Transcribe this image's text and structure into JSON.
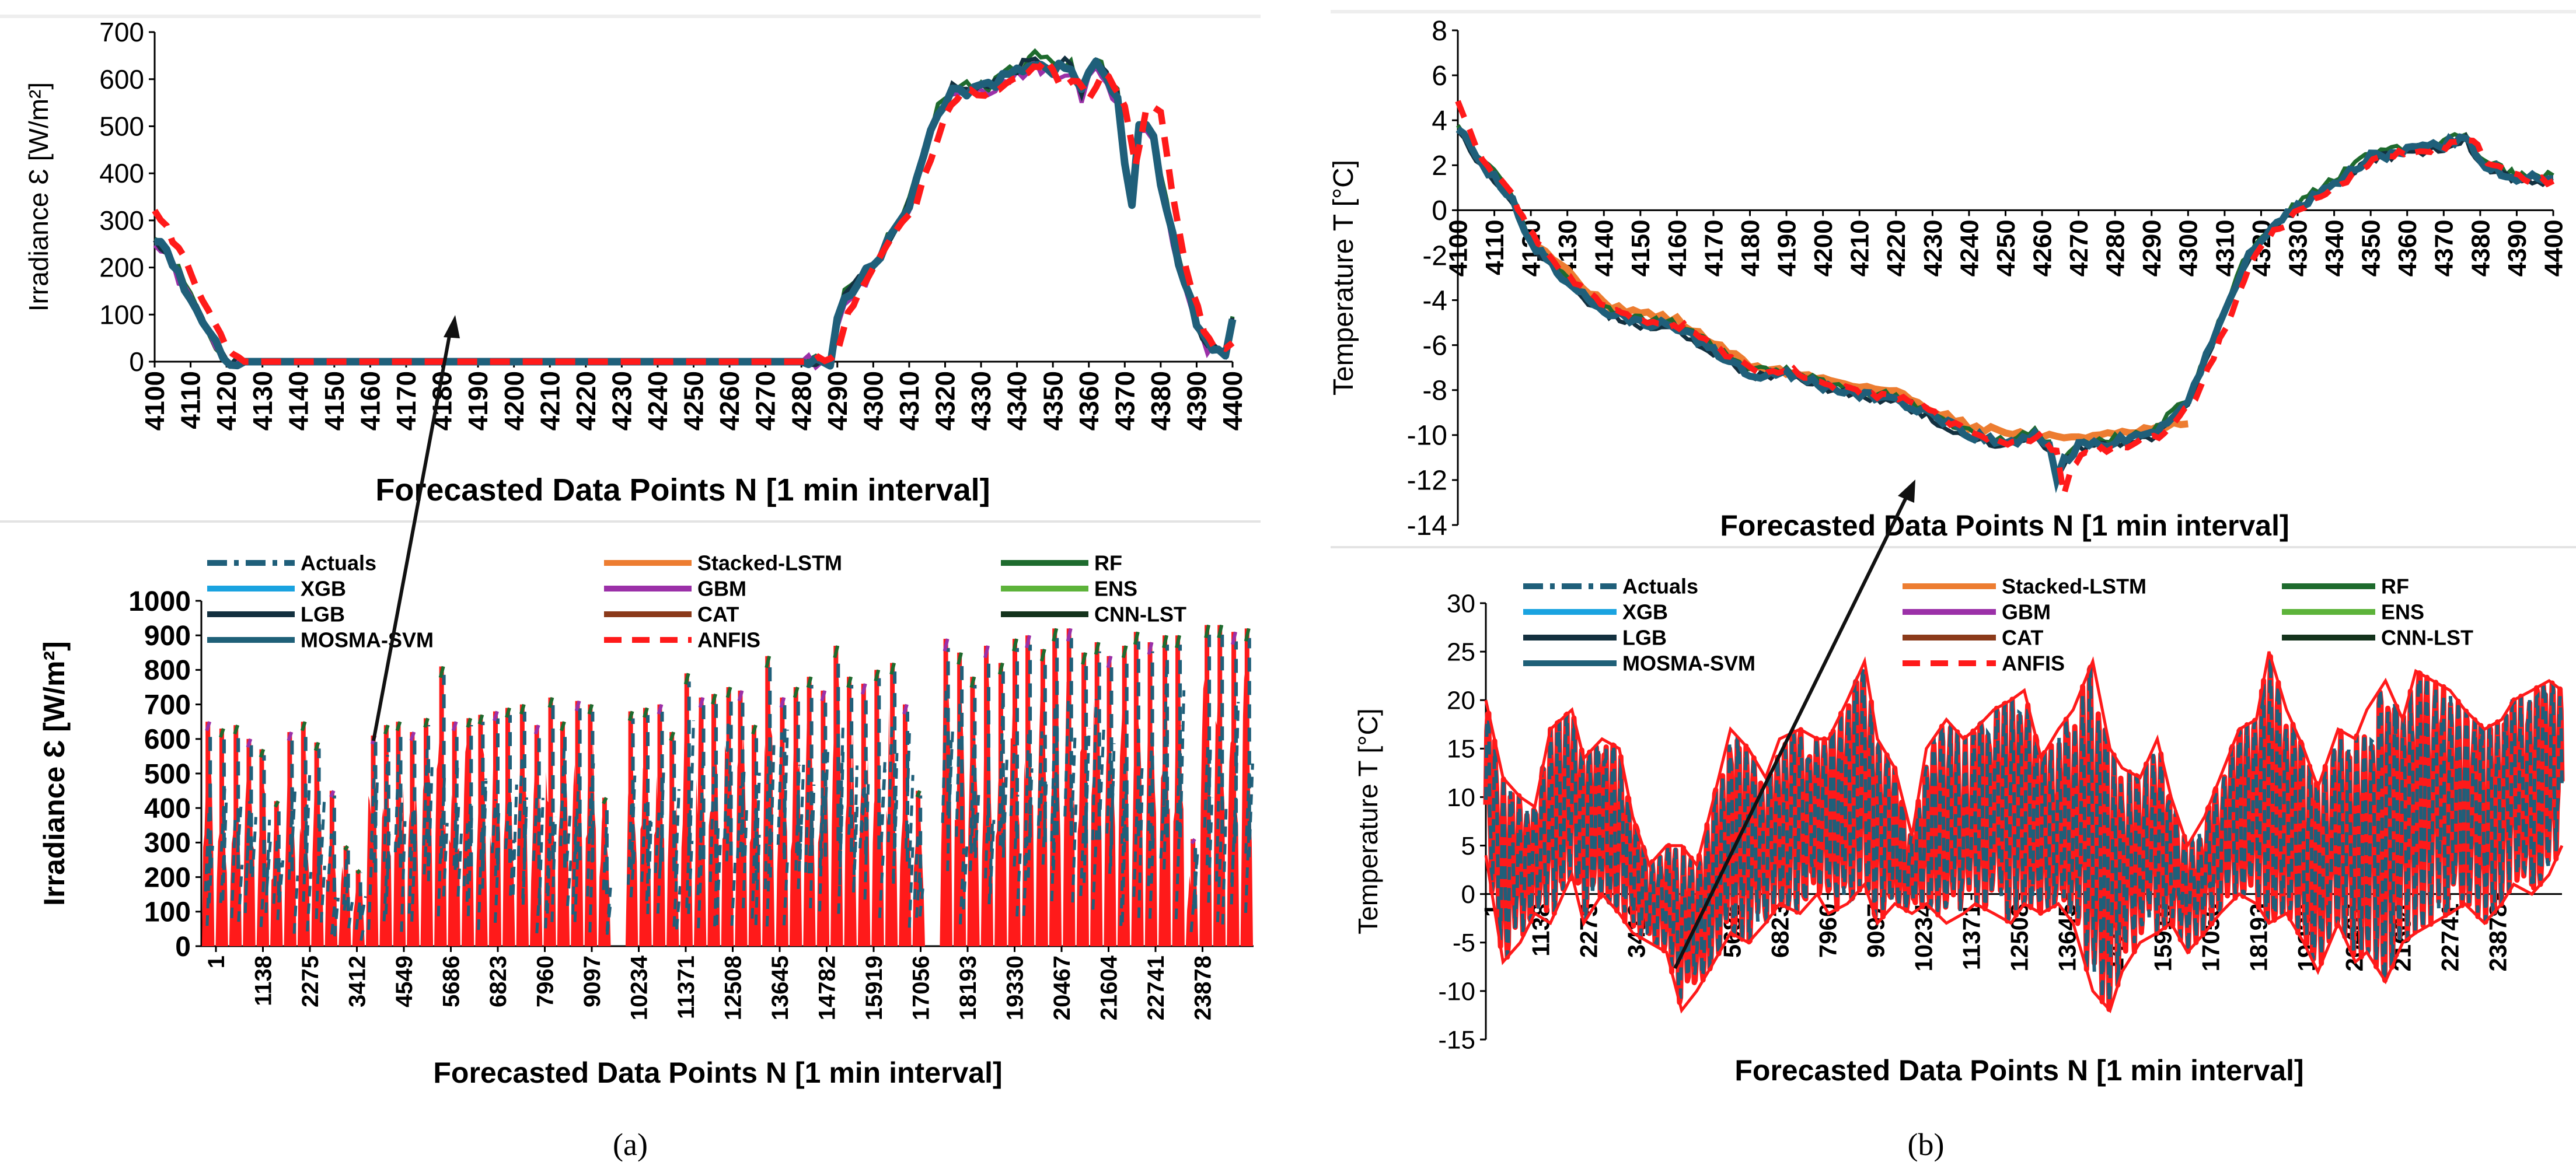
{
  "panel_labels": [
    "(a)",
    "(b)"
  ],
  "legend_entries": [
    {
      "name": "Actuals",
      "color": "#1f5f7a",
      "dash": "dashdot"
    },
    {
      "name": "Stacked-LSTM",
      "color": "#ed7d31",
      "dash": "solid"
    },
    {
      "name": "RF",
      "color": "#1e6b2e",
      "dash": "solid"
    },
    {
      "name": "XGB",
      "color": "#1aa3e0",
      "dash": "solid"
    },
    {
      "name": "GBM",
      "color": "#9b30a8",
      "dash": "solid"
    },
    {
      "name": "ENS",
      "color": "#5db33a",
      "dash": "solid"
    },
    {
      "name": "LGB",
      "color": "#13303f",
      "dash": "solid"
    },
    {
      "name": "CAT",
      "color": "#8b3a1a",
      "dash": "solid"
    },
    {
      "name": "CNN-LST",
      "color": "#14331c",
      "dash": "solid"
    },
    {
      "name": "MOSMA-SVM",
      "color": "#1f6078",
      "dash": "solid"
    },
    {
      "name": "ANFIS",
      "color": "#ff1a1a",
      "dash": "dash"
    }
  ],
  "colors": {
    "actual": "#1f5f7a",
    "anfis": "#ff1a1a",
    "gbm": "#9b30a8",
    "rf": "#1e6b2e",
    "stacked": "#ed7d31",
    "grid": "#d9d9d9",
    "axis": "#000000"
  },
  "chart_data": [
    {
      "id": "a-top",
      "type": "line",
      "title": "",
      "xlabel": "Forecasted Data Points N [1 min interval]",
      "ylabel": "Irradiance Ɛ [W/m²]",
      "xlim": [
        4100,
        4400
      ],
      "ylim": [
        0,
        700
      ],
      "xticks": [
        "4100",
        "4110",
        "4120",
        "4130",
        "4140",
        "4150",
        "4160",
        "4170",
        "4180",
        "4190",
        "4200",
        "4210",
        "4220",
        "4230",
        "4240",
        "4250",
        "4260",
        "4270",
        "4280",
        "4290",
        "4300",
        "4310",
        "4320",
        "4330",
        "4340",
        "4350",
        "4360",
        "4370",
        "4380",
        "4390",
        "4400"
      ],
      "yticks": [
        "0",
        "100",
        "200",
        "300",
        "400",
        "500",
        "600",
        "700"
      ],
      "series_actual": {
        "name": "Actuals",
        "x": [
          4100,
          4105,
          4110,
          4115,
          4119,
          4125,
          4200,
          4280,
          4288,
          4290,
          4292,
          4300,
          4310,
          4318,
          4322,
          4330,
          4340,
          4345,
          4350,
          4355,
          4358,
          4362,
          4365,
          4368,
          4370,
          4372,
          4374,
          4378,
          4380,
          4385,
          4390,
          4393,
          4396,
          4398,
          4400
        ],
        "values": [
          270,
          210,
          140,
          60,
          5,
          0,
          0,
          0,
          5,
          80,
          140,
          200,
          340,
          530,
          575,
          575,
          615,
          640,
          620,
          630,
          570,
          640,
          600,
          560,
          420,
          330,
          500,
          480,
          380,
          210,
          80,
          40,
          20,
          20,
          90
        ]
      },
      "series_anfis": {
        "name": "ANFIS",
        "x": [
          4100,
          4105,
          4110,
          4115,
          4120,
          4125,
          4200,
          4283,
          4290,
          4293,
          4296,
          4302,
          4312,
          4320,
          4325,
          4333,
          4343,
          4348,
          4352,
          4357,
          4360,
          4364,
          4367,
          4370,
          4373,
          4376,
          4380,
          4383,
          4387,
          4392,
          4395,
          4398,
          4400
        ],
        "values": [
          330,
          260,
          190,
          110,
          30,
          0,
          0,
          0,
          20,
          100,
          150,
          220,
          340,
          520,
          570,
          570,
          610,
          635,
          590,
          600,
          560,
          620,
          590,
          540,
          410,
          540,
          530,
          370,
          200,
          70,
          30,
          20,
          40
        ]
      }
    },
    {
      "id": "a-bottom",
      "type": "line",
      "title": "",
      "xlabel": "Forecasted Data Points N [1 min interval]",
      "ylabel": "Irradiance Ɛ [W/m²]",
      "xlim": [
        1,
        25000
      ],
      "ylim": [
        0,
        1000
      ],
      "xticks": [
        "1",
        "1138",
        "2275",
        "3412",
        "4549",
        "5686",
        "6823",
        "7960",
        "9097",
        "10234",
        "11371",
        "12508",
        "13645",
        "14782",
        "15919",
        "17056",
        "18193",
        "19330",
        "20467",
        "21604",
        "22741",
        "23878"
      ],
      "yticks": [
        "0",
        "100",
        "200",
        "300",
        "400",
        "500",
        "600",
        "700",
        "800",
        "900",
        "1000"
      ],
      "day_peaks": [
        650,
        630,
        640,
        600,
        570,
        420,
        620,
        650,
        590,
        450,
        290,
        220,
        610,
        640,
        650,
        620,
        660,
        810,
        650,
        660,
        670,
        680,
        690,
        700,
        640,
        720,
        650,
        710,
        700,
        430,
        0,
        680,
        690,
        700,
        620,
        790,
        720,
        730,
        750,
        740,
        640,
        840,
        720,
        750,
        780,
        740,
        870,
        780,
        760,
        800,
        820,
        700,
        450,
        0,
        890,
        850,
        780,
        870,
        820,
        890,
        900,
        860,
        920,
        920,
        850,
        880,
        840,
        870,
        910,
        880,
        900,
        900,
        310,
        930,
        930,
        910,
        920
      ]
    },
    {
      "id": "b-top",
      "type": "line",
      "title": "",
      "xlabel": "Forecasted Data Points N [1 min interval]",
      "ylabel": "Temperature T [°C]",
      "xlim": [
        4100,
        4400
      ],
      "ylim": [
        -14,
        8
      ],
      "xticks": [
        "4100",
        "4110",
        "4120",
        "4130",
        "4140",
        "4150",
        "4160",
        "4170",
        "4180",
        "4190",
        "4200",
        "4210",
        "4220",
        "4230",
        "4240",
        "4250",
        "4260",
        "4270",
        "4280",
        "4290",
        "4300",
        "4310",
        "4320",
        "4330",
        "4340",
        "4350",
        "4360",
        "4370",
        "4380",
        "4390",
        "4400"
      ],
      "yticks": [
        "-14",
        "-12",
        "-10",
        "-8",
        "-6",
        "-4",
        "-2",
        "0",
        "2",
        "4",
        "6",
        "8"
      ],
      "series_actual": {
        "name": "Actuals",
        "x": [
          4100,
          4105,
          4110,
          4115,
          4120,
          4130,
          4140,
          4150,
          4160,
          4170,
          4180,
          4190,
          4200,
          4210,
          4220,
          4230,
          4240,
          4250,
          4258,
          4262,
          4264,
          4266,
          4270,
          4280,
          4290,
          4300,
          4305,
          4310,
          4315,
          4320,
          4330,
          4340,
          4350,
          4360,
          4370,
          4376,
          4380,
          4390,
          4400
        ],
        "values": [
          3.8,
          2.2,
          1.5,
          0.5,
          -1.5,
          -3.2,
          -4.5,
          -5,
          -5.2,
          -6.2,
          -7.3,
          -7.2,
          -7.8,
          -8.2,
          -8.4,
          -9.2,
          -10,
          -10.4,
          -10,
          -10.5,
          -12,
          -11.2,
          -10.5,
          -10.3,
          -10,
          -8.5,
          -6.5,
          -4.5,
          -2.5,
          -1.2,
          0.2,
          1.2,
          2.4,
          2.6,
          2.9,
          3.3,
          2.1,
          1.4,
          1.4
        ]
      },
      "series_anfis": {
        "name": "ANFIS",
        "x": [
          4100,
          4105,
          4110,
          4115,
          4122,
          4132,
          4142,
          4152,
          4162,
          4172,
          4182,
          4192,
          4202,
          4212,
          4222,
          4232,
          4242,
          4252,
          4260,
          4264,
          4266,
          4268,
          4272,
          4282,
          4292,
          4302,
          4307,
          4312,
          4317,
          4322,
          4332,
          4342,
          4352,
          4362,
          4372,
          4378,
          4382,
          4392,
          4400
        ],
        "values": [
          5,
          2.8,
          1.6,
          0.6,
          -1.5,
          -3.2,
          -4.5,
          -5,
          -5.2,
          -6.2,
          -7.3,
          -7.2,
          -7.8,
          -8.2,
          -8.4,
          -9.2,
          -10,
          -10.4,
          -10,
          -10.8,
          -12.6,
          -11.5,
          -10.8,
          -10.5,
          -10,
          -8.5,
          -6.5,
          -4.5,
          -2.5,
          -1.2,
          0.2,
          1.2,
          2.4,
          2.6,
          2.9,
          3.2,
          2.1,
          1.4,
          1.3
        ]
      },
      "series_stacked": {
        "name": "Stacked-LSTM",
        "x": [
          4120,
          4140,
          4160,
          4180,
          4200,
          4220,
          4240,
          4260,
          4280,
          4300
        ],
        "values": [
          -1.2,
          -4.2,
          -4.9,
          -6.9,
          -7.5,
          -8.1,
          -9.6,
          -10.1,
          -10,
          -9.5
        ]
      }
    },
    {
      "id": "b-bottom",
      "type": "line",
      "title": "",
      "xlabel": "Forecasted Data Points N [1 min interval]",
      "ylabel": "Temperature T [°C]",
      "xlim": [
        1,
        25000
      ],
      "ylim": [
        -15,
        30
      ],
      "xticks": [
        "1",
        "1138",
        "2275",
        "3412",
        "4549",
        "5686",
        "6823",
        "7960",
        "9097",
        "10234",
        "11371",
        "12508",
        "13645",
        "14782",
        "15919",
        "17056",
        "18193",
        "19330",
        "20467",
        "21604",
        "22741",
        "23878"
      ],
      "yticks": [
        "-15",
        "-10",
        "-5",
        "0",
        "5",
        "10",
        "15",
        "20",
        "25",
        "30"
      ],
      "envelope_x": [
        1,
        400,
        800,
        1138,
        1500,
        2000,
        2275,
        2700,
        3100,
        3412,
        3800,
        4200,
        4549,
        4900,
        5300,
        5686,
        6100,
        6500,
        6823,
        7300,
        7700,
        7960,
        8400,
        8800,
        9097,
        9500,
        9900,
        10234,
        10700,
        11100,
        11371,
        11800,
        12200,
        12508,
        12900,
        13300,
        13645,
        14100,
        14500,
        14782,
        15200,
        15600,
        15919,
        16300,
        16700,
        17056,
        17500,
        17900,
        18193,
        18600,
        19000,
        19330,
        19800,
        20200,
        20467,
        20900,
        21300,
        21604,
        22000,
        22400,
        22741,
        23200,
        23600,
        23878,
        24300,
        24700,
        25000
      ],
      "envelope_max": [
        20,
        12,
        10,
        9,
        17,
        19,
        14,
        16,
        15,
        8,
        3,
        5,
        5,
        3,
        10,
        17,
        15,
        12,
        16,
        17,
        16,
        16,
        20,
        24,
        16,
        13,
        6,
        15,
        18,
        16,
        17,
        19,
        20,
        21,
        14,
        17,
        19,
        24,
        15,
        13,
        12,
        16,
        10,
        5,
        8,
        12,
        17,
        18,
        25,
        19,
        15,
        11,
        17,
        16,
        19,
        22,
        18,
        23,
        22,
        21,
        19,
        17,
        18,
        20,
        21,
        22,
        21
      ],
      "envelope_min": [
        4,
        -7,
        -5,
        -2,
        -3,
        2,
        -3,
        0,
        -2,
        -4,
        -5,
        -6,
        -12,
        -10,
        -7,
        -4,
        -5,
        -3,
        -1,
        -2,
        0,
        -2,
        -1,
        1,
        -3,
        -1,
        -2,
        -1,
        -3,
        -2,
        -1,
        -2,
        -3,
        -1,
        -2,
        -1,
        -3,
        -10,
        -12,
        -8,
        -5,
        -4,
        -3,
        -6,
        -4,
        -2,
        0,
        -1,
        -3,
        -2,
        -5,
        -8,
        -3,
        -7,
        -6,
        -9,
        -5,
        -4,
        -3,
        -2,
        -1,
        -3,
        -1,
        1,
        0,
        2,
        5
      ]
    }
  ]
}
